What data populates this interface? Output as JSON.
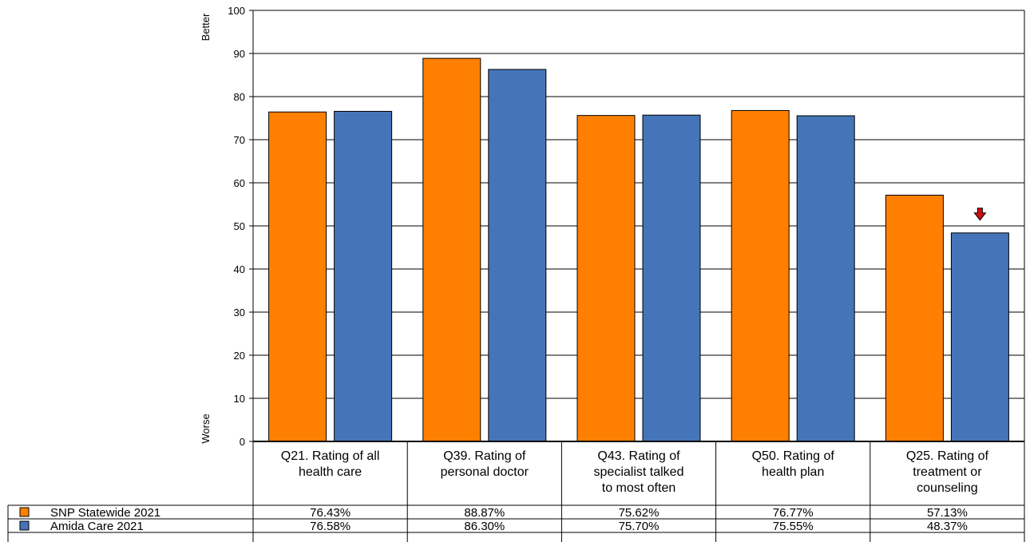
{
  "chart_data": {
    "type": "bar",
    "categories": [
      [
        "Q21. Rating of all",
        "health care"
      ],
      [
        "Q39. Rating of",
        "personal doctor"
      ],
      [
        "Q43. Rating of",
        "specialist talked",
        "to most often"
      ],
      [
        "Q50. Rating of",
        "health plan"
      ],
      [
        "Q25. Rating of",
        "treatment or",
        "counseling"
      ]
    ],
    "series": [
      {
        "name": "SNP Statewide 2021",
        "color": "#FF8000",
        "values": [
          76.43,
          88.87,
          75.62,
          76.77,
          57.13
        ],
        "labels": [
          "76.43%",
          "88.87%",
          "75.62%",
          "76.77%",
          "57.13%"
        ]
      },
      {
        "name": "Amida Care 2021",
        "color": "#4575B8",
        "values": [
          76.58,
          86.3,
          75.7,
          75.55,
          48.37
        ],
        "labels": [
          "76.58%",
          "86.30%",
          "75.70%",
          "75.55%",
          "48.37%"
        ]
      }
    ],
    "ylim": [
      0,
      100
    ],
    "yticks": [
      "0",
      "10",
      "20",
      "30",
      "40",
      "50",
      "60",
      "70",
      "80",
      "90",
      "100"
    ],
    "y_top_label": "Better",
    "y_bottom_label": "Worse",
    "grid": true,
    "data_table": true,
    "annotations": [
      {
        "series": 1,
        "category": 4,
        "icon": "down-arrow-icon",
        "color": "#CC1010"
      }
    ]
  }
}
